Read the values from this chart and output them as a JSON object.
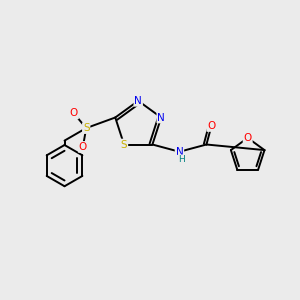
{
  "bg_color": "#ebebeb",
  "bond_color": "#000000",
  "atom_colors": {
    "S": "#c8b000",
    "N": "#0000ee",
    "O": "#ff0000",
    "C": "#000000",
    "H": "#008080"
  },
  "lw": 1.4,
  "fs": 7.5,
  "fs_small": 6.5
}
